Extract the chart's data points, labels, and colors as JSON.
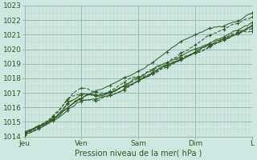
{
  "title": "",
  "xlabel": "Pression niveau de la mer( hPa )",
  "ylabel": "",
  "bg_color": "#cce8e0",
  "grid_color_major": "#aaccC4",
  "grid_color_minor": "#bbddd5",
  "line_color": "#2d5a27",
  "ylim": [
    1014,
    1023
  ],
  "yticks": [
    1014,
    1015,
    1016,
    1017,
    1018,
    1019,
    1020,
    1021,
    1022,
    1023
  ],
  "day_labels": [
    "Jeu",
    "Ven",
    "Sam",
    "Dim",
    "L"
  ],
  "day_ticks": [
    0,
    24,
    48,
    72,
    96
  ],
  "n_points": 97,
  "n_lines": 7
}
